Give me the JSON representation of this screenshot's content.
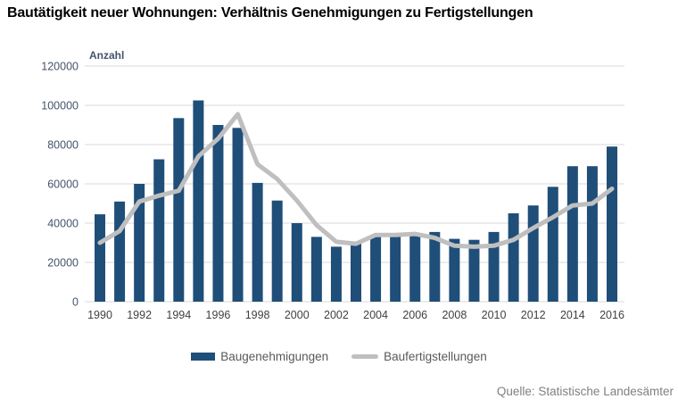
{
  "title": "Bautätigkeit neuer Wohnungen: Verhältnis Genehmigungen zu Fertigstellungen",
  "source": "Quelle: Statistische Landesämter",
  "colors": {
    "bar": "#1F4E79",
    "line": "#BFBFBF",
    "grid": "#D9D9D9",
    "axis_text": "#44546A",
    "tick_text": "#404040",
    "legend_text": "#595959",
    "source_text": "#808080"
  },
  "chart_data": {
    "type": "bar",
    "title": "Bautätigkeit neuer Wohnungen: Verhältnis Genehmigungen zu Fertigstellungen",
    "xlabel": "",
    "ylabel": "Anzahl",
    "ylim": [
      0,
      120000
    ],
    "y_tick_step": 20000,
    "x_ticks_every": 2,
    "grid": "horizontal",
    "legend_position": "bottom",
    "categories": [
      "1990",
      "1991",
      "1992",
      "1993",
      "1994",
      "1995",
      "1996",
      "1997",
      "1998",
      "1999",
      "2000",
      "2001",
      "2002",
      "2003",
      "2004",
      "2005",
      "2006",
      "2007",
      "2008",
      "2009",
      "2010",
      "2011",
      "2012",
      "2013",
      "2014",
      "2015",
      "2016"
    ],
    "series": [
      {
        "name": "Baugenehmigungen",
        "type": "bar",
        "values": [
          44500,
          51000,
          60000,
          72500,
          93500,
          102500,
          90000,
          88500,
          60500,
          51500,
          40000,
          33000,
          28000,
          30000,
          33500,
          33000,
          35000,
          35500,
          32000,
          31500,
          35500,
          45000,
          49000,
          58500,
          69000,
          69000,
          79000
        ]
      },
      {
        "name": "Baufertigstellungen",
        "type": "line",
        "values": [
          30000,
          36000,
          51000,
          54000,
          56500,
          74000,
          83000,
          95500,
          70000,
          62500,
          51500,
          39000,
          30500,
          29500,
          34000,
          34000,
          34500,
          32500,
          28500,
          28000,
          28500,
          31500,
          37500,
          43000,
          49000,
          50000,
          57500
        ]
      }
    ]
  }
}
